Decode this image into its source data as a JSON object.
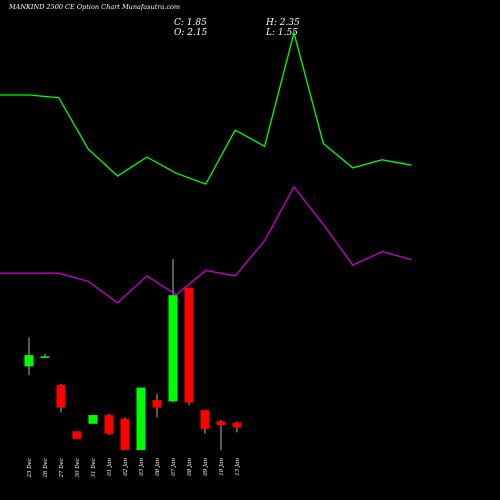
{
  "header": {
    "title": "MANKIND 2500  CE Option  Chart Munafasutra.com",
    "close": "C: 1.85",
    "open": "O: 2.15",
    "high": "H: 2.35",
    "low": "L: 1.55"
  },
  "colors": {
    "background": "#000000",
    "text": "#ffffff",
    "up_candle": "#00ff00",
    "down_candle": "#ff0000",
    "upper_line": "#00ff00",
    "lower_line": "#cc00cc",
    "wick": "#ffffff"
  },
  "chart_data": {
    "type": "candlestick",
    "categories": [
      "23 Dec",
      "26 Dec",
      "27 Dec",
      "30 Dec",
      "31 Dec",
      "01 Jan",
      "02 Jan",
      "03 Jan",
      "06 Jan",
      "07 Jan",
      "08 Jan",
      "09 Jan",
      "10 Jan",
      "13 Jan"
    ],
    "candles": [
      {
        "open": 2.05,
        "high": 2.28,
        "low": 1.98,
        "close": 2.14
      },
      {
        "open": 2.13,
        "high": 2.15,
        "low": 2.12,
        "close": 2.13
      },
      {
        "open": 1.9,
        "high": 1.91,
        "low": 1.68,
        "close": 1.72
      },
      {
        "open": 1.53,
        "high": 1.53,
        "low": 1.47,
        "close": 1.47
      },
      {
        "open": 1.59,
        "high": 1.66,
        "low": 1.59,
        "close": 1.66
      },
      {
        "open": 1.66,
        "high": 1.67,
        "low": 1.5,
        "close": 1.51
      },
      {
        "open": 1.63,
        "high": 1.64,
        "low": 1.38,
        "close": 1.38
      },
      {
        "open": 1.38,
        "high": 1.88,
        "low": 1.38,
        "close": 1.88
      },
      {
        "open": 1.78,
        "high": 1.83,
        "low": 1.64,
        "close": 1.72
      },
      {
        "open": 1.77,
        "high": 2.91,
        "low": 1.76,
        "close": 2.62
      },
      {
        "open": 2.68,
        "high": 2.68,
        "low": 1.74,
        "close": 1.76
      },
      {
        "open": 1.7,
        "high": 1.7,
        "low": 1.51,
        "close": 1.55
      },
      {
        "open": 1.61,
        "high": 1.62,
        "low": 1.38,
        "close": 1.58
      },
      {
        "open": 1.6,
        "high": 1.61,
        "low": 1.52,
        "close": 1.56
      }
    ],
    "line_x": [
      0,
      1,
      2,
      3,
      4,
      5,
      6,
      7,
      8,
      9,
      10,
      11,
      12,
      13
    ],
    "series": [
      {
        "values": [
          1.5,
          1.5,
          1.49,
          1.3,
          1.2,
          1.27,
          1.21,
          1.17,
          1.37,
          1.31,
          1.73,
          1.32,
          1.23,
          1.26,
          1.24
        ],
        "x": [
          0,
          1,
          2,
          3,
          4,
          5,
          6,
          7,
          8,
          9,
          10,
          11,
          12,
          13,
          14
        ]
      },
      {
        "values": [
          0.84,
          0.84,
          0.84,
          0.81,
          0.73,
          0.83,
          0.76,
          0.85,
          0.83,
          0.96,
          1.16,
          1.02,
          0.87,
          0.92,
          0.89
        ],
        "x": [
          0,
          1,
          2,
          3,
          4,
          5,
          6,
          7,
          8,
          9,
          10,
          11,
          12,
          13,
          14
        ]
      }
    ]
  }
}
